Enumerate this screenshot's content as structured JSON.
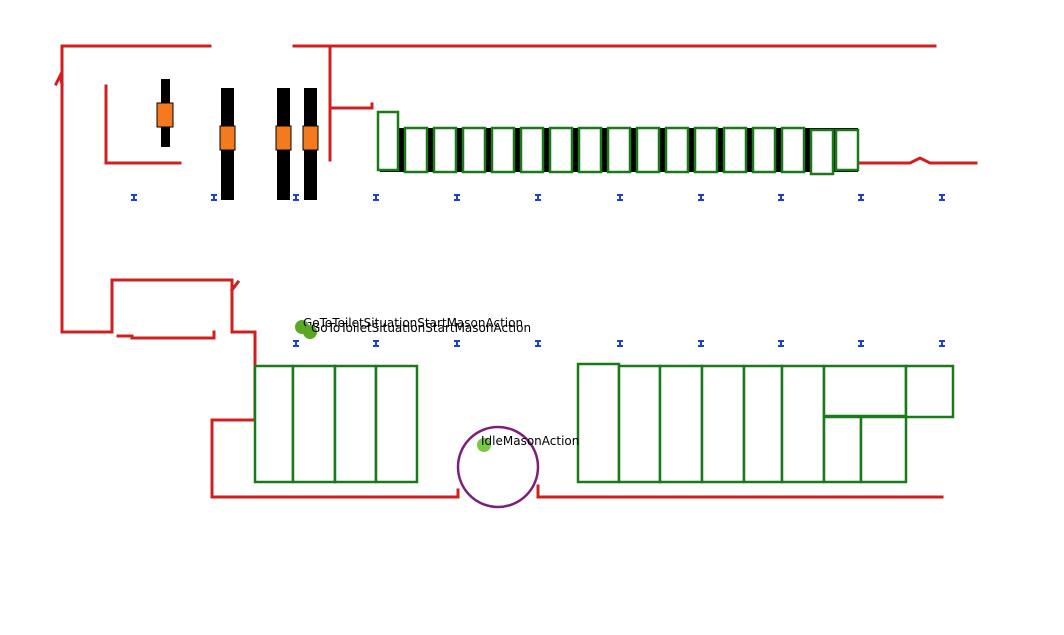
{
  "colors": {
    "wall": "#d11f1f",
    "shelf": "#1a7a1a",
    "agent": "#7ac943",
    "agent_alt": "#5aa823",
    "ring": "#7a1f7a",
    "orange": "#f47a20",
    "marker": "#1f3fd1"
  },
  "agents": [
    {
      "label": "GoToToiletSituationStartMasonAction"
    },
    {
      "label": "GoToToiletSituationStartMasonAction"
    },
    {
      "label": "IdleMasonAction"
    }
  ],
  "icons": {
    "marker": "waypoint-marker-icon",
    "agent": "agent-dot-icon"
  }
}
